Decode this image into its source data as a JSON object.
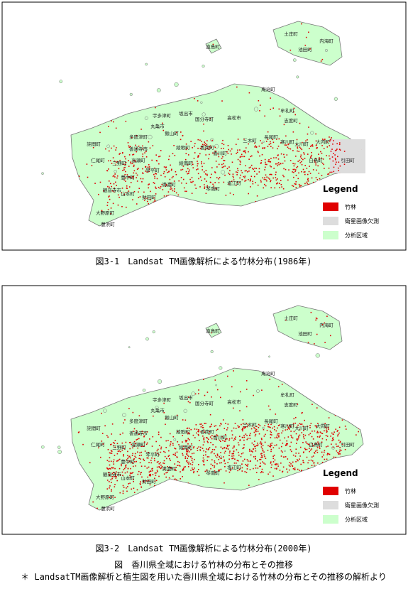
{
  "maps": [
    {
      "legend": {
        "title": "Legend",
        "items": [
          "竹林",
          "衛星画像欠測",
          "分析区域"
        ]
      },
      "caption": "図3-1　Landsat TM画像解析による竹林分布(1986年)",
      "towns": [
        "土庄町",
        "内海町",
        "池田町",
        "直島町",
        "庵治町",
        "牟礼町",
        "志度町",
        "高松市",
        "宇多津町",
        "坂出市",
        "国分寺町",
        "丸亀市",
        "飯山町",
        "多度津町",
        "綾歌町",
        "綾南町",
        "香南町",
        "香川町",
        "三木町",
        "長尾町",
        "寒川町",
        "大川町",
        "大内町",
        "白鳥町",
        "引田町",
        "詫間町",
        "仁尾町",
        "三野町",
        "高瀬町",
        "善通寺市",
        "琴平町",
        "満濃町",
        "琴南町",
        "塩江町",
        "豊中町",
        "観音寺市",
        "山本町",
        "財田町",
        "大野原町",
        "豊浜町"
      ]
    },
    {
      "legend": {
        "title": "Legend",
        "items": [
          "竹林",
          "衛星画像欠測",
          "分析区域"
        ]
      },
      "caption": "図3-2　Landsat TM画像解析による竹林分布(2000年)",
      "towns": [
        "土庄町",
        "内海町",
        "池田町",
        "直島町",
        "庵治町",
        "牟礼町",
        "志度町",
        "高松市",
        "宇多津町",
        "坂出市",
        "国分寺町",
        "丸亀市",
        "飯山町",
        "多度津町",
        "綾歌町",
        "綾南町",
        "香南町",
        "香川町",
        "三木町",
        "長尾町",
        "寒川町",
        "大川町",
        "大内町",
        "白鳥町",
        "引田町",
        "詫間町",
        "仁尾町",
        "三野町",
        "高瀬町",
        "善通寺市",
        "琴平町",
        "満濃町",
        "琴南町",
        "塩江町",
        "豊中町",
        "観音寺市",
        "山本町",
        "財田町",
        "大野原町",
        "豊浜町"
      ]
    }
  ],
  "footer": {
    "title": "図　香川県全域における竹林の分布とその推移",
    "note": "＊ LandsatTM画像解析と植生図を用いた香川県全域における竹林の分布とその推移の解析より"
  }
}
